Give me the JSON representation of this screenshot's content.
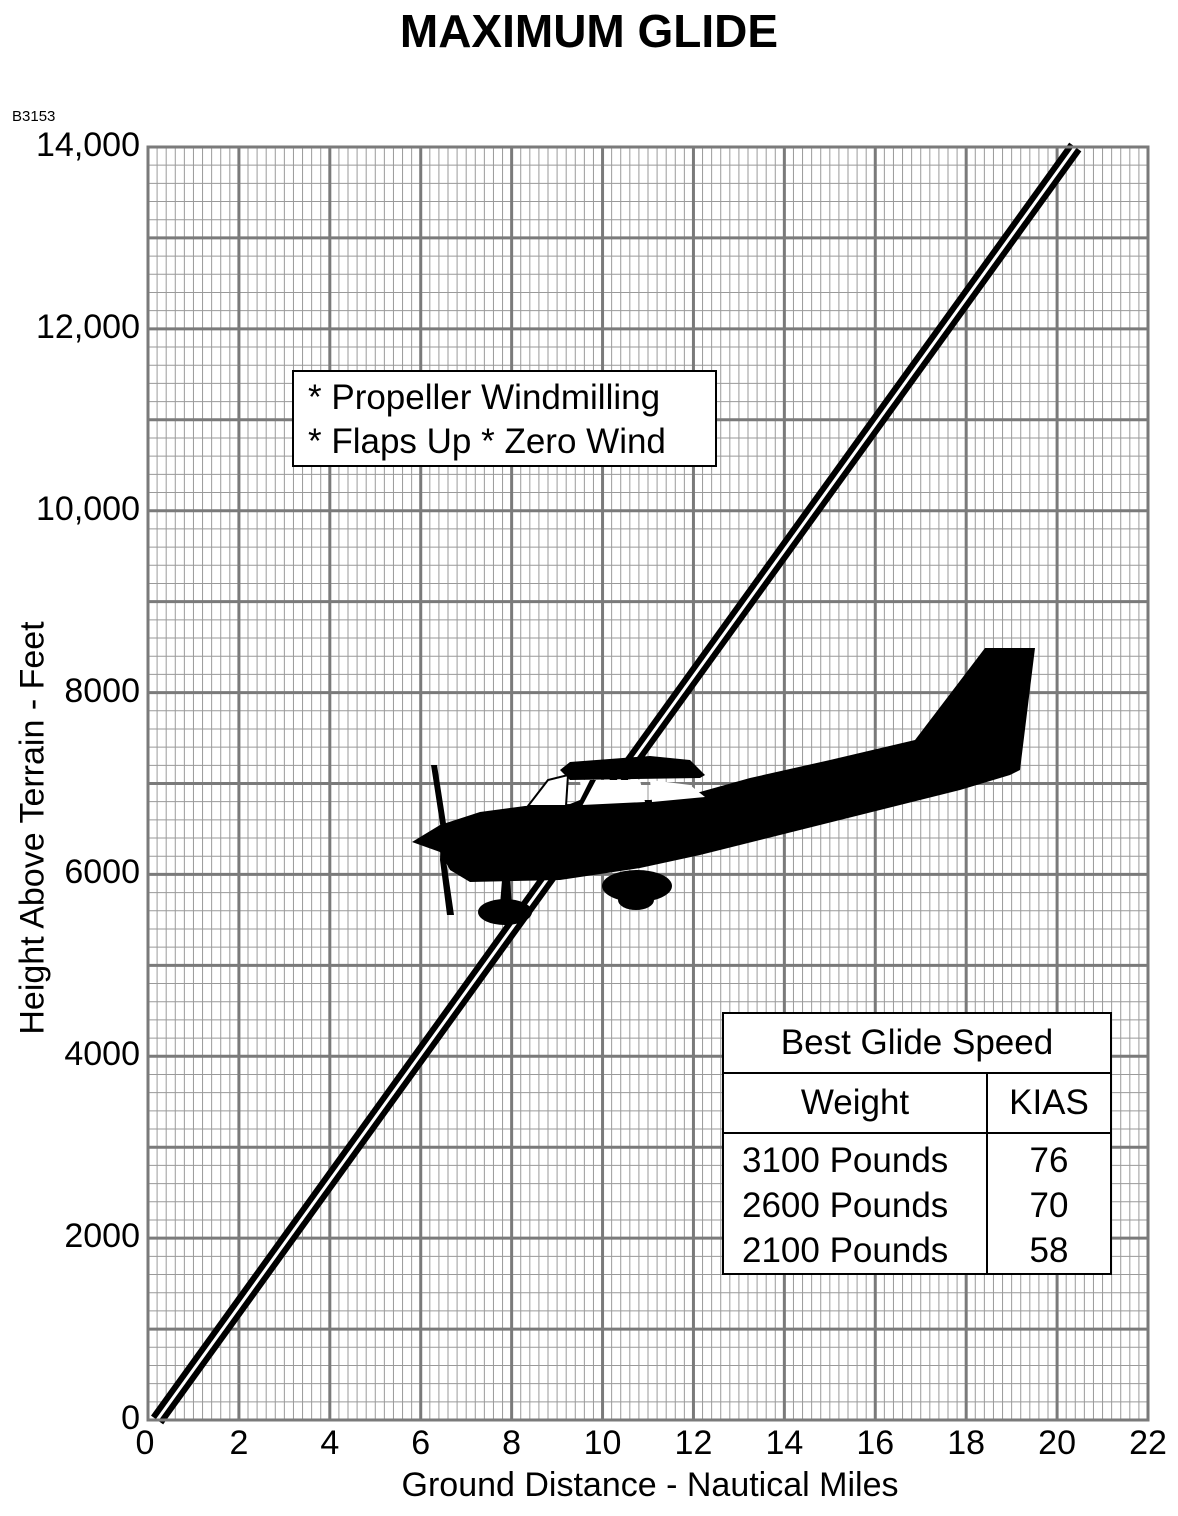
{
  "title": "MAXIMUM GLIDE",
  "figure_id": "B3153",
  "chart_data": {
    "type": "line",
    "title": "MAXIMUM GLIDE",
    "xlabel": "Ground Distance - Nautical Miles",
    "ylabel": "Height Above Terrain - Feet",
    "xlim": [
      0,
      22
    ],
    "ylim": [
      0,
      14000
    ],
    "x_ticks": [
      "0",
      "2",
      "4",
      "6",
      "8",
      "10",
      "12",
      "14",
      "16",
      "18",
      "20",
      "22"
    ],
    "y_ticks": [
      "0",
      "2000",
      "4000",
      "6000",
      "8000",
      "10,000",
      "12,000",
      "14,000"
    ],
    "grid": true,
    "series": [
      {
        "x": [
          0.2,
          20.4
        ],
        "y": [
          0,
          14000
        ]
      }
    ],
    "annotations": {
      "conditions": [
        "* Propeller Windmilling",
        "* Flaps Up  * Zero Wind"
      ],
      "best_glide_table": {
        "title": "Best Glide Speed",
        "headers": [
          "Weight",
          "KIAS"
        ],
        "rows": [
          [
            "3100 Pounds",
            "76"
          ],
          [
            "2600 Pounds",
            "70"
          ],
          [
            "2100 Pounds",
            "58"
          ]
        ]
      }
    },
    "illustration": "airplane-silhouette"
  },
  "colors": {
    "major_grid": "#7a7a7a",
    "minor_grid": "#9a9a9a",
    "line": "#000000",
    "background": "#ffffff"
  }
}
